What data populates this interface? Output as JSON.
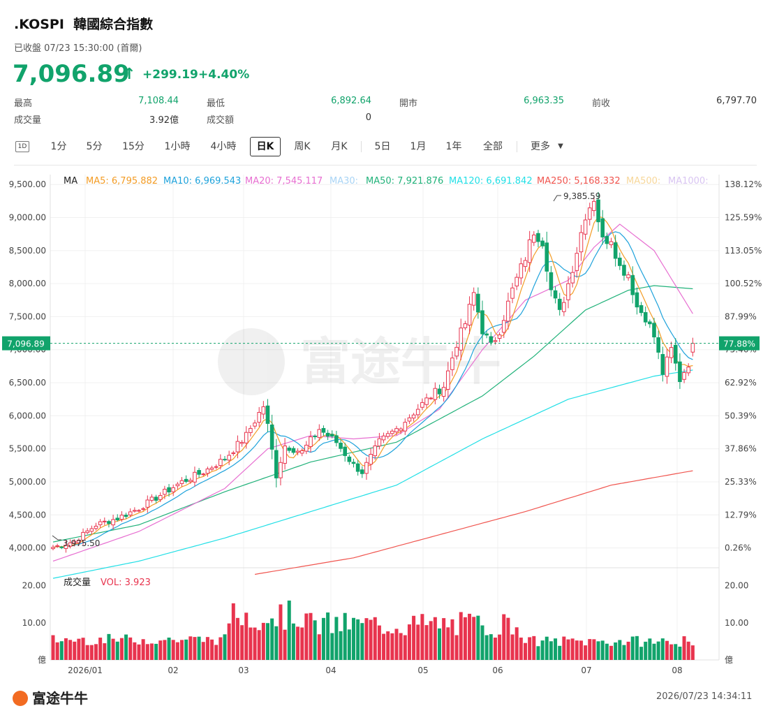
{
  "header": {
    "ticker": ".KOSPI",
    "name": "韓國綜合指數",
    "status": "已收盤 07/23 15:30:00 (首爾)",
    "price": "7,096.89",
    "change": "+299.19",
    "change_pct": "+4.40%",
    "color_up": "#e8344e",
    "color_down": "#11a36b"
  },
  "quote": {
    "high_label": "最高",
    "high": "7,108.44",
    "low_label": "最低",
    "low": "6,892.64",
    "open_label": "開市",
    "open": "6,963.35",
    "prev_label": "前收",
    "prev": "6,797.70",
    "volume_label": "成交量",
    "volume": "3.92億",
    "turnover_label": "成交額",
    "turnover": "0"
  },
  "tabs": {
    "icon_label": "1D",
    "items": [
      "1分",
      "5分",
      "15分",
      "1小時",
      "4小時",
      "日K",
      "周K",
      "月K",
      "5日",
      "1月",
      "1年",
      "全部",
      "更多"
    ],
    "active": "日K"
  },
  "legend": {
    "ma": "MA",
    "ma5": "MA5: 6,795.882",
    "ma10": "MA10: 6,969.543",
    "ma20": "MA20: 7,545.117",
    "ma30": "MA30:",
    "ma50": "MA50: 7,921.876",
    "ma120": "MA120: 6,691.842",
    "ma250": "MA250: 5,168.332",
    "ma500": "MA500:",
    "ma1000": "MA1000:",
    "colors": {
      "ma5": "#f39c25",
      "ma10": "#1ea2db",
      "ma20": "#e76fd1",
      "ma30": "#a9d4f5",
      "ma50": "#21b27a",
      "ma120": "#21dfe6",
      "ma250": "#f0554f",
      "ma500": "#f7d79a",
      "ma1000": "#d9c5f2"
    }
  },
  "annotations": {
    "max_label": "9,385.59",
    "min_label": "3,975.50",
    "current_price_label": "7,096.89",
    "current_pct_label": "77.88%"
  },
  "volume_legend": {
    "title": "成交量",
    "vol": "VOL: 3.923"
  },
  "footer": {
    "brand": "富途牛牛",
    "timestamp": "2026/07/23 14:34:11",
    "watermark": "富途牛牛"
  },
  "chart_data": {
    "type": "candlestick",
    "y_axis_left": [
      "9,500.00",
      "9,000.00",
      "8,500.00",
      "8,000.00",
      "7,500.00",
      "7,000.00",
      "6,500.00",
      "6,000.00",
      "5,500.00",
      "5,000.00",
      "4,500.00",
      "4,000.00"
    ],
    "y_axis_right": [
      "138.12%",
      "125.59%",
      "113.05%",
      "100.52%",
      "87.99%",
      "75.46%",
      "62.92%",
      "50.39%",
      "37.86%",
      "25.33%",
      "12.79%",
      "0.26%"
    ],
    "vol_axis": [
      "20.00",
      "10.00",
      "億"
    ],
    "x_labels": [
      "2026/01",
      "02",
      "03",
      "04",
      "05",
      "06",
      "07",
      "08"
    ],
    "ylim": [
      3700,
      9650
    ],
    "close_anchors": [
      [
        0,
        4010
      ],
      [
        5,
        4100
      ],
      [
        10,
        4350
      ],
      [
        15,
        4450
      ],
      [
        20,
        4600
      ],
      [
        25,
        4800
      ],
      [
        30,
        5000
      ],
      [
        35,
        5150
      ],
      [
        40,
        5350
      ],
      [
        45,
        5700
      ],
      [
        49,
        6150
      ],
      [
        50,
        5850
      ],
      [
        52,
        5100
      ],
      [
        54,
        5550
      ],
      [
        58,
        5450
      ],
      [
        62,
        5800
      ],
      [
        66,
        5600
      ],
      [
        70,
        5250
      ],
      [
        72,
        5150
      ],
      [
        76,
        5600
      ],
      [
        80,
        5800
      ],
      [
        84,
        6050
      ],
      [
        88,
        6300
      ],
      [
        91,
        6450
      ],
      [
        94,
        7100
      ],
      [
        96,
        7400
      ],
      [
        98,
        7850
      ],
      [
        100,
        7300
      ],
      [
        102,
        7050
      ],
      [
        104,
        7300
      ],
      [
        107,
        7900
      ],
      [
        110,
        8400
      ],
      [
        112,
        8800
      ],
      [
        114,
        8650
      ],
      [
        116,
        7900
      ],
      [
        118,
        7550
      ],
      [
        120,
        8000
      ],
      [
        122,
        8500
      ],
      [
        124,
        9050
      ],
      [
        126,
        9300
      ],
      [
        128,
        8650
      ],
      [
        130,
        8700
      ],
      [
        132,
        8250
      ],
      [
        134,
        8150
      ],
      [
        136,
        7650
      ],
      [
        138,
        7500
      ],
      [
        140,
        7200
      ],
      [
        142,
        6650
      ],
      [
        144,
        7000
      ],
      [
        146,
        6550
      ],
      [
        148,
        6800
      ],
      [
        149,
        7096.89
      ]
    ],
    "ma_anchors": {
      "ma50": [
        [
          0,
          4090
        ],
        [
          20,
          4350
        ],
        [
          40,
          4850
        ],
        [
          60,
          5300
        ],
        [
          80,
          5600
        ],
        [
          100,
          6300
        ],
        [
          112,
          6900
        ],
        [
          124,
          7600
        ],
        [
          134,
          7900
        ],
        [
          140,
          7970
        ],
        [
          149,
          7921.876
        ]
      ],
      "ma120": [
        [
          0,
          3540
        ],
        [
          20,
          3800
        ],
        [
          40,
          4150
        ],
        [
          60,
          4550
        ],
        [
          80,
          4950
        ],
        [
          100,
          5650
        ],
        [
          120,
          6250
        ],
        [
          140,
          6600
        ],
        [
          149,
          6691.842
        ]
      ],
      "ma250": [
        [
          47,
          3600
        ],
        [
          70,
          3850
        ],
        [
          90,
          4200
        ],
        [
          110,
          4550
        ],
        [
          130,
          4950
        ],
        [
          149,
          5168.332
        ]
      ],
      "ma20": [
        [
          0,
          3800
        ],
        [
          20,
          4250
        ],
        [
          40,
          4900
        ],
        [
          50,
          5500
        ],
        [
          60,
          5700
        ],
        [
          70,
          5650
        ],
        [
          80,
          5700
        ],
        [
          90,
          6100
        ],
        [
          100,
          7000
        ],
        [
          110,
          7750
        ],
        [
          120,
          8050
        ],
        [
          126,
          8550
        ],
        [
          132,
          8900
        ],
        [
          140,
          8500
        ],
        [
          149,
          7545.117
        ]
      ]
    },
    "series": [
      {
        "name": "MA5",
        "last": 6795.882
      },
      {
        "name": "MA10",
        "last": 6969.543
      },
      {
        "name": "MA20",
        "last": 7545.117
      },
      {
        "name": "MA50",
        "last": 7921.876
      },
      {
        "name": "MA120",
        "last": 6691.842
      },
      {
        "name": "MA250",
        "last": 5168.332
      }
    ],
    "max": 9385.59,
    "min": 3975.5,
    "last_volume": 3.923,
    "vol_ylim": [
      0,
      22
    ]
  }
}
